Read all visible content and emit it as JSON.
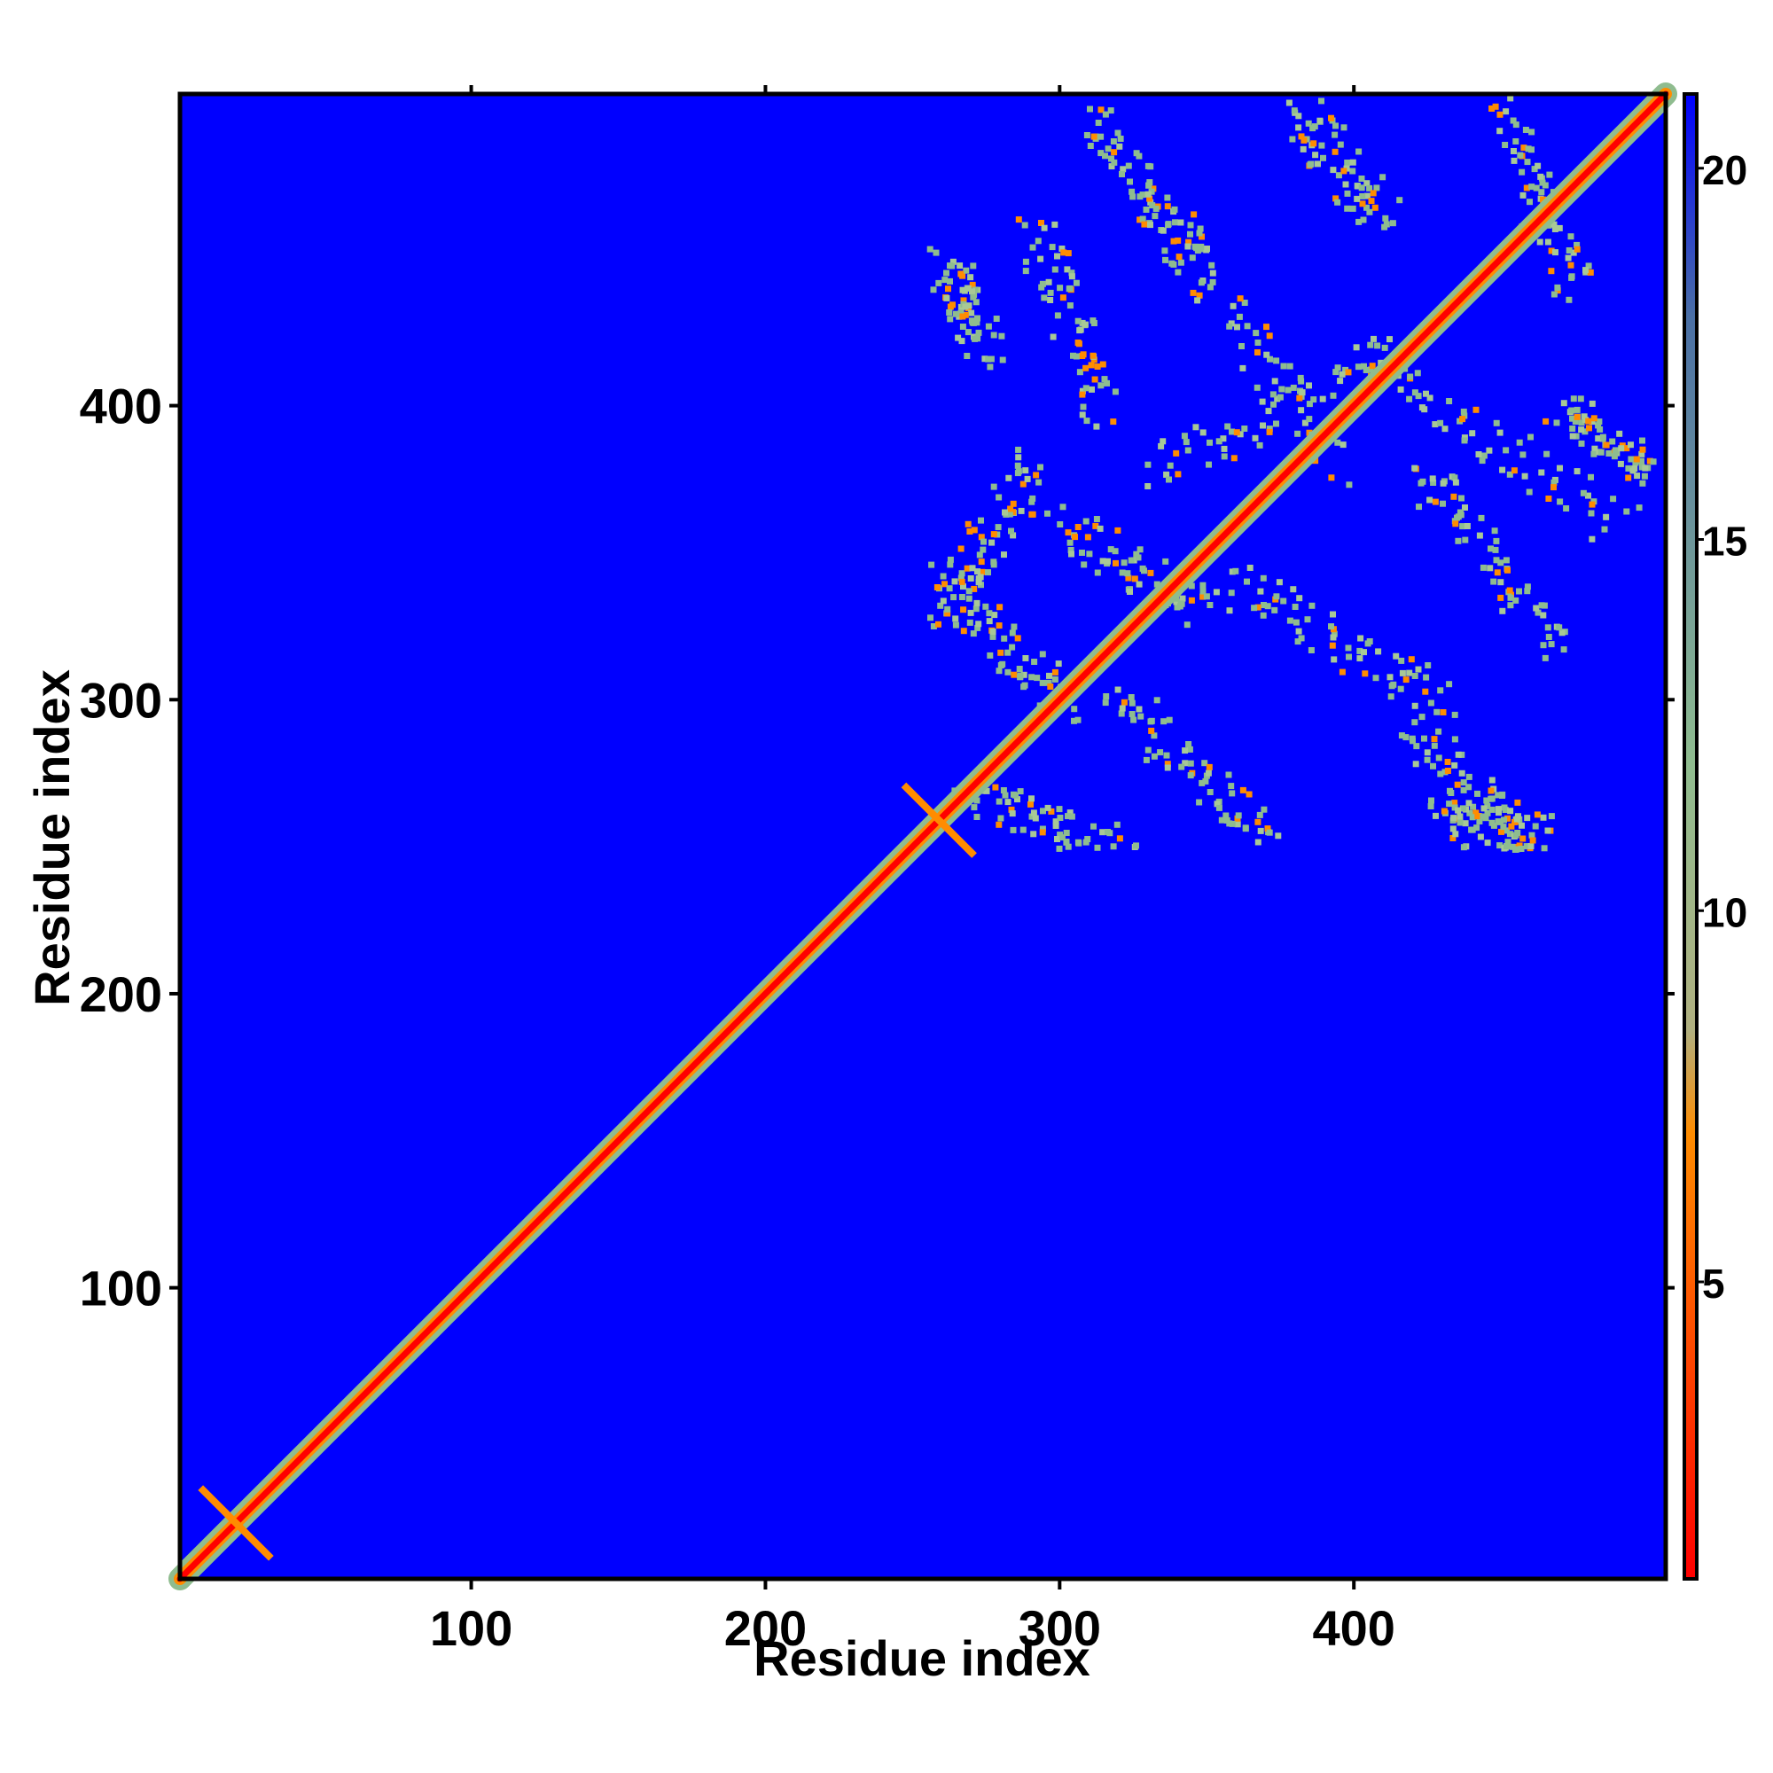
{
  "chart_data": {
    "type": "heatmap",
    "title": "",
    "xlabel": "Residue index",
    "ylabel": "Residue index",
    "xlim": [
      1,
      506
    ],
    "ylim": [
      1,
      506
    ],
    "x_ticks": [
      100,
      200,
      300,
      400
    ],
    "y_ticks": [
      100,
      200,
      300,
      400
    ],
    "x_tick_labels": [
      "100",
      "200",
      "300",
      "400"
    ],
    "y_tick_labels": [
      "100",
      "200",
      "300",
      "400"
    ],
    "colorbar": {
      "range": [
        1,
        21
      ],
      "ticks": [
        5,
        10,
        15,
        20
      ],
      "tick_labels": [
        "5",
        "10",
        "15",
        "20"
      ],
      "colors": {
        "low": "#ff0000",
        "mid_low": "#ff8c00",
        "mid": "#8fbc8f",
        "high": "#4a6fa5",
        "background": "#0000ff"
      }
    },
    "features": {
      "diagonal": {
        "from": 1,
        "to": 506,
        "value": 2
      },
      "crossings": [
        {
          "x": 20,
          "y": 20,
          "half_span": 12
        },
        {
          "x": 259,
          "y": 259,
          "half_span": 12
        }
      ],
      "contact_region": {
        "x": [
          250,
          506
        ],
        "y": [
          250,
          506
        ]
      }
    }
  }
}
